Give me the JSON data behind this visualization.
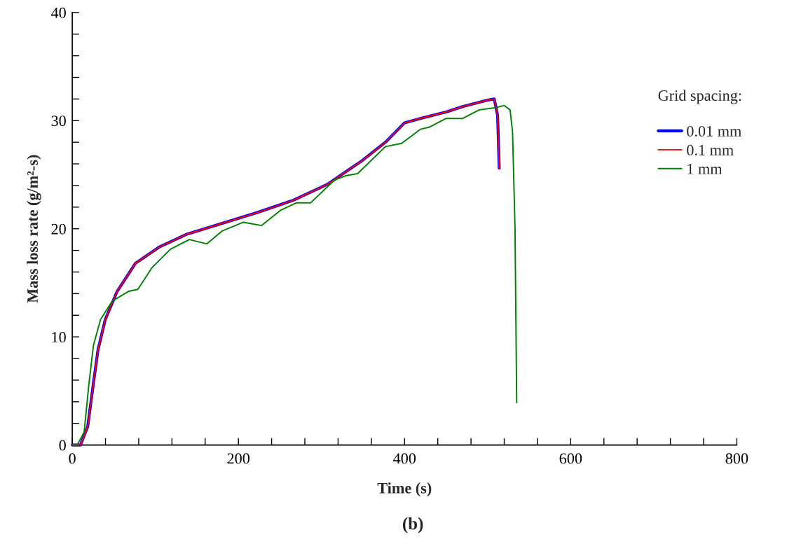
{
  "chart_data": {
    "type": "line",
    "xlabel": "Time (s)",
    "ylabel": "Mass loss rate (g/m²-s)",
    "legend_title": "Grid spacing:",
    "legend": "right",
    "grid": false,
    "marker": "none",
    "line_style": "solid",
    "xlim": [
      0,
      800
    ],
    "ylim": [
      0,
      40
    ],
    "xticks": [
      0,
      {
        "value": 40,
        "label": null
      },
      {
        "value": 80,
        "label": null
      },
      {
        "value": 120,
        "label": null
      },
      {
        "value": 160,
        "label": null
      },
      200,
      {
        "value": 240,
        "label": null
      },
      {
        "value": 280,
        "label": null
      },
      {
        "value": 320,
        "label": null
      },
      {
        "value": 360,
        "label": null
      },
      400,
      {
        "value": 440,
        "label": null
      },
      {
        "value": 480,
        "label": null
      },
      {
        "value": 520,
        "label": null
      },
      {
        "value": 560,
        "label": null
      },
      600,
      {
        "value": 640,
        "label": null
      },
      {
        "value": 680,
        "label": null
      },
      {
        "value": 720,
        "label": null
      },
      {
        "value": 760,
        "label": null
      },
      800
    ],
    "yticks": [
      0,
      {
        "value": 2,
        "label": null
      },
      {
        "value": 4,
        "label": null
      },
      {
        "value": 6,
        "label": null
      },
      {
        "value": 8,
        "label": null
      },
      10,
      {
        "value": 12,
        "label": null
      },
      {
        "value": 14,
        "label": null
      },
      {
        "value": 16,
        "label": null
      },
      {
        "value": 18,
        "label": null
      },
      20,
      {
        "value": 22,
        "label": null
      },
      {
        "value": 24,
        "label": null
      },
      {
        "value": 26,
        "label": null
      },
      {
        "value": 28,
        "label": null
      },
      30,
      {
        "value": 32,
        "label": null
      },
      {
        "value": 34,
        "label": null
      },
      {
        "value": 36,
        "label": null
      },
      {
        "value": 38,
        "label": null
      },
      40
    ],
    "annotations": [
      "(b)"
    ],
    "series": [
      {
        "name": "0.01 mm",
        "color": "#0000ff",
        "x": [
          0,
          10,
          18.6,
          25.3,
          31,
          39.7,
          54,
          76,
          104.6,
          138,
          180.6,
          222.8,
          265,
          307,
          349,
          377,
          400,
          419,
          450,
          470,
          500,
          508,
          512,
          514
        ],
        "values": [
          0,
          0,
          1.7,
          5.6,
          8.8,
          11.6,
          14.2,
          16.8,
          18.3,
          19.5,
          20.5,
          21.5,
          22.6,
          24.1,
          26.3,
          28.0,
          29.8,
          30.2,
          30.8,
          31.3,
          31.9,
          32.0,
          30.5,
          25.6
        ]
      },
      {
        "name": "0.1 mm",
        "color": "#ff0000",
        "x": [
          0,
          10,
          18.6,
          25.3,
          31,
          39.7,
          54,
          76,
          104.6,
          138,
          180.6,
          222.8,
          265,
          307,
          349,
          377,
          400,
          419,
          450,
          470,
          500,
          508,
          512,
          514
        ],
        "values": [
          0,
          0,
          1.7,
          5.6,
          8.8,
          11.6,
          14.2,
          16.8,
          18.3,
          19.5,
          20.5,
          21.5,
          22.6,
          24.1,
          26.3,
          28.0,
          29.8,
          30.2,
          30.8,
          31.3,
          31.9,
          32.0,
          30.5,
          25.6
        ]
      },
      {
        "name": "1 mm",
        "color": "#008000",
        "x": [
          0,
          6,
          14.3,
          20,
          25.5,
          34,
          48,
          67.5,
          79,
          96,
          118,
          141,
          162,
          180.6,
          206,
          228,
          250.6,
          270,
          287,
          315.6,
          329,
          343.5,
          377,
          396.6,
          419,
          430,
          450,
          470,
          490,
          510,
          520,
          527,
          530,
          533,
          535
        ],
        "values": [
          0,
          0,
          1.2,
          5.6,
          9.2,
          11.6,
          13.3,
          14.2,
          14.4,
          16.4,
          18.1,
          19.0,
          18.6,
          19.8,
          20.6,
          20.3,
          21.7,
          22.4,
          22.4,
          24.5,
          24.9,
          25.1,
          27.6,
          27.9,
          29.2,
          29.4,
          30.2,
          30.2,
          31.0,
          31.2,
          31.4,
          31.0,
          29.0,
          20.0,
          3.9
        ]
      }
    ]
  }
}
